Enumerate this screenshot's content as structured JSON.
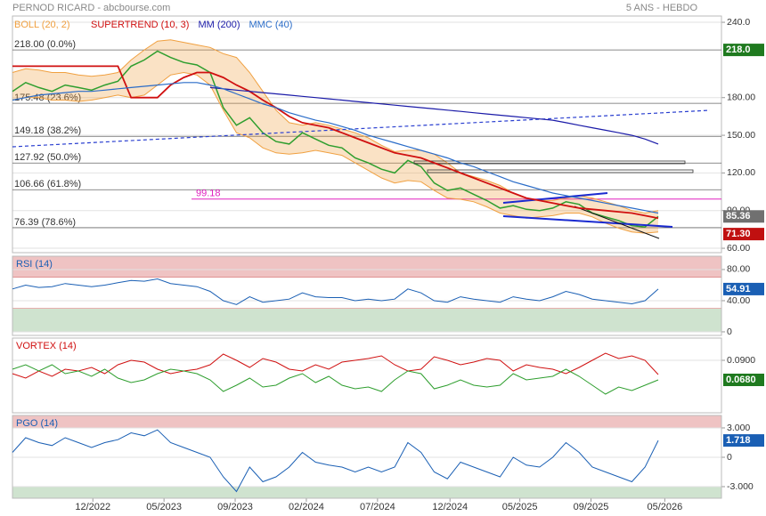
{
  "chart_data": [
    {
      "type": "line",
      "title": "PERNOD RICARD - abcbourse.com",
      "subtitle": "5 ANS - HEBDO",
      "xlim": [
        0,
        53.8
      ],
      "xticks": [
        {
          "value": 6.1,
          "label": "12/2022"
        },
        {
          "value": 11.5,
          "label": "05/2023"
        },
        {
          "value": 16.9,
          "label": "09/2023"
        },
        {
          "value": 22.3,
          "label": "02/2024"
        },
        {
          "value": 27.7,
          "label": "07/2024"
        },
        {
          "value": 33.2,
          "label": "12/2024"
        },
        {
          "value": 38.5,
          "label": "05/2025"
        },
        {
          "value": 43.9,
          "label": "09/2025"
        },
        {
          "value": 49.5,
          "label": "05/2026"
        }
      ],
      "ylim": [
        56.5,
        245
      ],
      "yticks": [
        {
          "value": 240,
          "label": "240.0"
        },
        {
          "value": 180,
          "label": "180.00"
        },
        {
          "value": 150,
          "label": "150.00"
        },
        {
          "value": 120,
          "label": "120.00"
        },
        {
          "value": 90,
          "label": "90.00"
        },
        {
          "value": 60,
          "label": "60.00"
        }
      ],
      "close": {
        "color": "#2e9e2e",
        "values": [
          185,
          192,
          188,
          185,
          190,
          188,
          186,
          190,
          193,
          205,
          210,
          217,
          212,
          208,
          206,
          200,
          172,
          158,
          164,
          152,
          145,
          143,
          152,
          147,
          142,
          140,
          132,
          128,
          123,
          120,
          130,
          125,
          112,
          106,
          108,
          103,
          98,
          92,
          94,
          91,
          90,
          92,
          97,
          95,
          88,
          85,
          82,
          78,
          77,
          85.36
        ]
      },
      "boll": {
        "name": "BOLL (20, 2)",
        "color": "#f0a040",
        "upper": [
          200,
          203,
          202,
          200,
          200,
          198,
          197,
          198,
          200,
          210,
          218,
          225,
          226,
          224,
          222,
          220,
          215,
          212,
          200,
          185,
          170,
          160,
          158,
          160,
          158,
          155,
          152,
          148,
          142,
          137,
          138,
          138,
          135,
          128,
          120,
          117,
          114,
          110,
          104,
          100,
          98,
          98,
          100,
          102,
          100,
          97,
          94,
          90,
          88,
          90
        ],
        "lower": [
          178,
          180,
          180,
          178,
          178,
          177,
          178,
          180,
          182,
          180,
          182,
          190,
          198,
          200,
          198,
          190,
          170,
          152,
          148,
          140,
          136,
          135,
          136,
          138,
          136,
          134,
          128,
          122,
          116,
          112,
          114,
          113,
          106,
          100,
          99,
          97,
          93,
          88,
          86,
          84,
          85,
          86,
          88,
          88,
          85,
          80,
          76,
          73,
          72,
          73
        ]
      },
      "series": [
        {
          "name": "SUPERTREND (10, 3)",
          "color": "#d01010",
          "values": [
            205,
            205,
            205,
            205,
            205,
            205,
            205,
            205,
            205,
            180,
            180,
            180,
            190,
            196,
            200,
            200,
            196,
            190,
            185,
            178,
            172,
            165,
            160,
            158,
            156,
            152,
            148,
            144,
            140,
            136,
            134,
            132,
            128,
            124,
            120,
            116,
            112,
            108,
            104,
            100,
            98,
            96,
            94,
            92,
            91,
            90,
            89,
            88,
            86,
            84
          ]
        },
        {
          "name": "MM (200)",
          "color": "#1a1aa8",
          "values": [
            null,
            null,
            null,
            null,
            null,
            null,
            null,
            null,
            null,
            null,
            null,
            null,
            null,
            null,
            null,
            188,
            187,
            186,
            185,
            184,
            183,
            182,
            181,
            180,
            179,
            178,
            177,
            176,
            175,
            174,
            173,
            172,
            171,
            170,
            169,
            168,
            167,
            166,
            165,
            164,
            163,
            162,
            160,
            158,
            156,
            154,
            152,
            150,
            147,
            143
          ]
        },
        {
          "name": "MMC (40)",
          "color": "#2a6cc8",
          "values": [
            178,
            180,
            182,
            183,
            184,
            185,
            185,
            186,
            187,
            188,
            189,
            190,
            191,
            192,
            192,
            190,
            187,
            183,
            179,
            175,
            172,
            168,
            165,
            162,
            160,
            157,
            154,
            150,
            147,
            144,
            141,
            138,
            135,
            132,
            128,
            125,
            121,
            117,
            113,
            110,
            107,
            104,
            102,
            100,
            98,
            96,
            94,
            92,
            90,
            88
          ]
        }
      ],
      "levels": [
        {
          "value": 218,
          "label": "218.00 (0.0%)"
        },
        {
          "value": 175.48,
          "label": "175.48 (23.6%)"
        },
        {
          "value": 149.18,
          "label": "149.18 (38.2%)"
        },
        {
          "value": 127.92,
          "label": "127.92 (50.0%)"
        },
        {
          "value": 106.66,
          "label": "106.66 (61.8%)"
        },
        {
          "value": 76.39,
          "label": "76.39 (78.6%)"
        }
      ],
      "marker_line": {
        "value": 99.18,
        "label": "99.18",
        "color": "#e020c0"
      },
      "tags": [
        {
          "value": 218,
          "label": "218.0",
          "color": "#1f7a1f"
        },
        {
          "value": 85.36,
          "label": "85.36",
          "color": "#707070"
        },
        {
          "value": 71.3,
          "label": "71.30",
          "color": "#c01010"
        }
      ]
    },
    {
      "type": "line",
      "title": "RSI (14)",
      "ylim": [
        -4.6,
        97.1
      ],
      "yticks": [
        {
          "value": 80,
          "label": "80.00"
        },
        {
          "value": 40,
          "label": "40.00"
        },
        0
      ],
      "zones": [
        {
          "range": [
            70,
            100
          ],
          "color": "#efc3c3"
        },
        {
          "range": [
            0,
            30
          ],
          "color": "#cfe3cf"
        }
      ],
      "series": [
        {
          "color": "#1a5fb4",
          "values": [
            55,
            60,
            57,
            58,
            62,
            60,
            58,
            60,
            63,
            66,
            65,
            68,
            62,
            60,
            58,
            52,
            40,
            35,
            45,
            38,
            40,
            42,
            50,
            45,
            44,
            44,
            40,
            42,
            40,
            42,
            55,
            50,
            40,
            38,
            45,
            42,
            40,
            38,
            45,
            42,
            40,
            45,
            52,
            48,
            42,
            40,
            38,
            36,
            40,
            54.91
          ]
        }
      ],
      "tag_color": "#1a5fb4"
    },
    {
      "type": "line",
      "title": "VORTEX (14)",
      "ylim": [
        0.031,
        0.115
      ],
      "yticks": [
        {
          "value": 0.09,
          "label": "0.0900"
        }
      ],
      "series": [
        {
          "color": "#d01010",
          "values": [
            0.075,
            0.07,
            0.078,
            0.072,
            0.08,
            0.078,
            0.082,
            0.075,
            0.085,
            0.09,
            0.088,
            0.08,
            0.075,
            0.078,
            0.08,
            0.085,
            0.097,
            0.09,
            0.082,
            0.092,
            0.088,
            0.08,
            0.078,
            0.085,
            0.08,
            0.088,
            0.09,
            0.092,
            0.095,
            0.085,
            0.078,
            0.08,
            0.094,
            0.09,
            0.085,
            0.088,
            0.092,
            0.09,
            0.078,
            0.085,
            0.082,
            0.08,
            0.075,
            0.082,
            0.09,
            0.098,
            0.092,
            0.095,
            0.09,
            0.074
          ]
        },
        {
          "color": "#2e9e2e",
          "values": [
            0.08,
            0.085,
            0.078,
            0.085,
            0.075,
            0.078,
            0.072,
            0.08,
            0.07,
            0.065,
            0.068,
            0.075,
            0.08,
            0.078,
            0.075,
            0.068,
            0.055,
            0.062,
            0.07,
            0.06,
            0.062,
            0.07,
            0.075,
            0.065,
            0.072,
            0.062,
            0.058,
            0.06,
            0.055,
            0.068,
            0.078,
            0.075,
            0.058,
            0.062,
            0.068,
            0.062,
            0.06,
            0.062,
            0.075,
            0.068,
            0.07,
            0.072,
            0.08,
            0.072,
            0.062,
            0.052,
            0.06,
            0.056,
            0.062,
            0.068
          ]
        }
      ],
      "tag": {
        "value": 0.068,
        "label": "0.0680",
        "color": "#1f7a1f"
      }
    },
    {
      "type": "line",
      "title": "PGO (14)",
      "ylim": [
        -4.18,
        4.27
      ],
      "yticks": [
        {
          "value": 3,
          "label": "3.000"
        },
        0,
        {
          "value": -3,
          "label": "-3.000"
        }
      ],
      "zones": [
        {
          "range": [
            3,
            5
          ],
          "color": "#efc3c3"
        },
        {
          "range": [
            -5,
            -3
          ],
          "color": "#cfe3cf"
        }
      ],
      "series": [
        {
          "color": "#1a5fb4",
          "values": [
            0.5,
            2,
            1.5,
            1.2,
            2,
            1.5,
            1,
            1.5,
            1.8,
            2.5,
            2.2,
            2.8,
            1.5,
            1,
            0.5,
            0,
            -2,
            -3.5,
            -1,
            -2.5,
            -2,
            -1,
            0.5,
            -0.5,
            -0.8,
            -1,
            -1.5,
            -1,
            -1.5,
            -1,
            1.5,
            0.5,
            -1.5,
            -2.2,
            -0.5,
            -1,
            -1.5,
            -2,
            0,
            -0.8,
            -1,
            0,
            1.5,
            0.5,
            -1,
            -1.5,
            -2,
            -2.5,
            -1,
            1.718
          ]
        }
      ],
      "tag_color": "#1a5fb4"
    }
  ]
}
